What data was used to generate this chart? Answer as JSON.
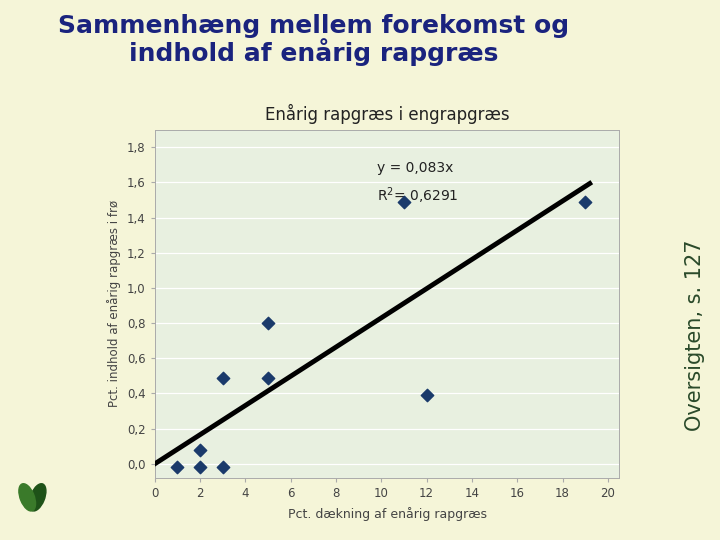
{
  "title_line1": "Sammenhæng mellem forekomst og",
  "title_line2": "indhold af enårig rapgræs",
  "title_color": "#1a237e",
  "title_fontsize": 18,
  "title_fontweight": "bold",
  "bg_outer": "#f5f5d8",
  "bg_plot_area": "#e8f0e0",
  "chart_title": "Enårig rapgræs i engrapgræs",
  "chart_title_fontsize": 12,
  "xlabel": "Pct. dækning af enårig rapgræs",
  "ylabel": "Pct. indhold af enårig rapgræs i frø",
  "scatter_x": [
    1,
    2,
    2,
    3,
    3,
    5,
    5,
    12,
    11,
    19
  ],
  "scatter_y": [
    -0.02,
    0.08,
    -0.02,
    0.49,
    -0.02,
    0.8,
    0.49,
    0.39,
    1.49,
    1.49
  ],
  "scatter_color": "#1a3a6b",
  "scatter_marker": "D",
  "scatter_size": 40,
  "trendline_slope": 0.083,
  "trendline_x_start": 0,
  "trendline_x_end": 19.2,
  "trendline_color": "#000000",
  "trendline_lw": 3.5,
  "eq_text": "y = 0,083x",
  "r2_label": "R",
  "r2_sup": "2",
  "r2_rest": "= 0,6291",
  "eq_x": 9.8,
  "eq_y": 1.72,
  "r2_x": 9.8,
  "r2_y": 1.58,
  "xlim": [
    0,
    20.5
  ],
  "ylim": [
    -0.08,
    1.9
  ],
  "xticks": [
    0,
    2,
    4,
    6,
    8,
    10,
    12,
    14,
    16,
    18,
    20
  ],
  "yticks": [
    0.0,
    0.2,
    0.4,
    0.6,
    0.8,
    1.0,
    1.2,
    1.4,
    1.6,
    1.8
  ],
  "ytick_labels": [
    "0,0",
    "0,2",
    "0,4",
    "0,6",
    "0,8",
    "1,0",
    "1,2",
    "1,4",
    "1,6",
    "1,8"
  ],
  "side_text": "Oversigten, s. 127",
  "side_text_color": "#2a4a2a",
  "side_text_fontsize": 15,
  "font_color_axis": "#444444"
}
